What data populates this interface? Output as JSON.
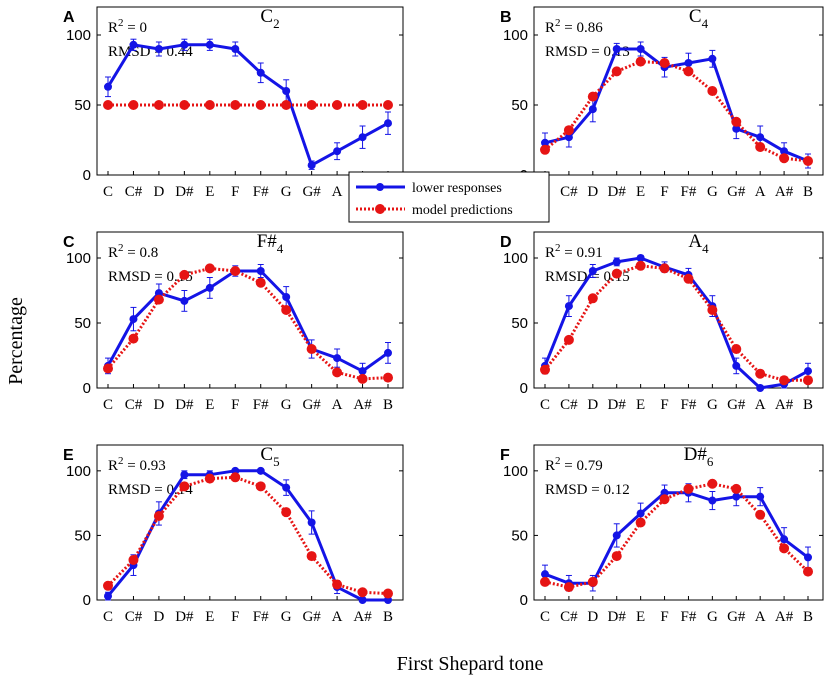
{
  "figure": {
    "ylabel": "Percentage",
    "xlabel": "First Shepard tone",
    "legend": {
      "location": "center",
      "entries": [
        "lower responses",
        "model predictions"
      ]
    },
    "colors": {
      "responses": "#1414e6",
      "model": "#e61414"
    }
  },
  "chart_data": [
    {
      "type": "line",
      "letter": "A",
      "title": "C",
      "title_sub": "2",
      "r2_label": "R",
      "r2_sup": "2",
      "r2_value": " = 0",
      "rmsd": "RMSD = 0.44",
      "ylim": [
        0,
        120
      ],
      "yticks": [
        0,
        50,
        100
      ],
      "categories": [
        "C",
        "C#",
        "D",
        "D#",
        "E",
        "F",
        "F#",
        "G",
        "G#",
        "A",
        "A#",
        "B"
      ],
      "series": [
        {
          "name": "lower responses",
          "values": [
            63,
            93,
            90,
            93,
            93,
            90,
            73,
            60,
            7,
            17,
            27,
            37
          ],
          "errors": [
            7,
            4,
            5,
            4,
            4,
            5,
            7,
            8,
            3,
            6,
            8,
            8
          ]
        },
        {
          "name": "model predictions",
          "values": [
            50,
            50,
            50,
            50,
            50,
            50,
            50,
            50,
            50,
            50,
            50,
            50
          ]
        }
      ]
    },
    {
      "type": "line",
      "letter": "B",
      "title": "C",
      "title_sub": "4",
      "r2_label": "R",
      "r2_sup": "2",
      "r2_value": " = 0.86",
      "rmsd": "RMSD = 0.13",
      "ylim": [
        0,
        120
      ],
      "yticks": [
        0,
        50,
        100
      ],
      "categories": [
        "C",
        "C#",
        "D",
        "D#",
        "E",
        "F",
        "F#",
        "G",
        "G#",
        "A",
        "A#",
        "B"
      ],
      "series": [
        {
          "name": "lower responses",
          "values": [
            23,
            27,
            47,
            90,
            90,
            77,
            80,
            83,
            33,
            27,
            17,
            10
          ],
          "errors": [
            7,
            7,
            9,
            4,
            5,
            7,
            7,
            6,
            7,
            8,
            6,
            5
          ]
        },
        {
          "name": "model predictions",
          "values": [
            18,
            32,
            56,
            74,
            81,
            80,
            74,
            60,
            38,
            20,
            12,
            10
          ]
        }
      ]
    },
    {
      "type": "line",
      "letter": "C",
      "title": "F#",
      "title_sub": "4",
      "r2_label": "R",
      "r2_sup": "2",
      "r2_value": " = 0.8",
      "rmsd": "RMSD = 0.15",
      "ylim": [
        0,
        120
      ],
      "yticks": [
        0,
        50,
        100
      ],
      "categories": [
        "C",
        "C#",
        "D",
        "D#",
        "E",
        "F",
        "F#",
        "G",
        "G#",
        "A",
        "A#",
        "B"
      ],
      "series": [
        {
          "name": "lower responses",
          "values": [
            17,
            53,
            73,
            67,
            77,
            90,
            90,
            70,
            30,
            23,
            13,
            27
          ],
          "errors": [
            6,
            9,
            7,
            8,
            8,
            4,
            5,
            8,
            7,
            7,
            6,
            8
          ]
        },
        {
          "name": "model predictions",
          "values": [
            15,
            38,
            68,
            87,
            92,
            90,
            81,
            60,
            30,
            12,
            7,
            8
          ]
        }
      ]
    },
    {
      "type": "line",
      "letter": "D",
      "title": "A",
      "title_sub": "4",
      "r2_label": "R",
      "r2_sup": "2",
      "r2_value": " = 0.91",
      "rmsd": "RMSD = 0.15",
      "ylim": [
        0,
        120
      ],
      "yticks": [
        0,
        50,
        100
      ],
      "categories": [
        "C",
        "C#",
        "D",
        "D#",
        "E",
        "F",
        "F#",
        "G",
        "G#",
        "A",
        "A#",
        "B"
      ],
      "series": [
        {
          "name": "lower responses",
          "values": [
            17,
            63,
            90,
            97,
            100,
            93,
            87,
            63,
            17,
            0,
            3,
            13
          ],
          "errors": [
            6,
            8,
            5,
            3,
            2,
            4,
            5,
            8,
            6,
            2,
            3,
            6
          ]
        },
        {
          "name": "model predictions",
          "values": [
            14,
            37,
            69,
            88,
            94,
            92,
            84,
            60,
            30,
            11,
            6,
            6
          ]
        }
      ]
    },
    {
      "type": "line",
      "letter": "E",
      "title": "C",
      "title_sub": "5",
      "r2_label": "R",
      "r2_sup": "2",
      "r2_value": " = 0.93",
      "rmsd": "RMSD = 0.14",
      "ylim": [
        0,
        120
      ],
      "yticks": [
        0,
        50,
        100
      ],
      "categories": [
        "C",
        "C#",
        "D",
        "D#",
        "E",
        "F",
        "F#",
        "G",
        "G#",
        "A",
        "A#",
        "B"
      ],
      "series": [
        {
          "name": "lower responses",
          "values": [
            3,
            27,
            67,
            97,
            97,
            100,
            100,
            87,
            60,
            10,
            0,
            0
          ],
          "errors": [
            3,
            8,
            9,
            3,
            3,
            1,
            1,
            6,
            9,
            5,
            2,
            2
          ]
        },
        {
          "name": "model predictions",
          "values": [
            11,
            31,
            65,
            88,
            94,
            95,
            88,
            68,
            34,
            12,
            6,
            5
          ]
        }
      ]
    },
    {
      "type": "line",
      "letter": "F",
      "title": "D#",
      "title_sub": "6",
      "r2_label": "R",
      "r2_sup": "2",
      "r2_value": " = 0.79",
      "rmsd": "RMSD = 0.12",
      "ylim": [
        0,
        120
      ],
      "yticks": [
        0,
        50,
        100
      ],
      "categories": [
        "C",
        "C#",
        "D",
        "D#",
        "E",
        "F",
        "F#",
        "G",
        "G#",
        "A",
        "A#",
        "B"
      ],
      "series": [
        {
          "name": "lower responses",
          "values": [
            20,
            13,
            13,
            50,
            67,
            83,
            83,
            77,
            80,
            80,
            47,
            33
          ],
          "errors": [
            7,
            6,
            6,
            9,
            8,
            6,
            7,
            7,
            7,
            7,
            9,
            8
          ]
        },
        {
          "name": "model predictions",
          "values": [
            14,
            10,
            14,
            34,
            60,
            78,
            86,
            90,
            86,
            66,
            40,
            22
          ]
        }
      ]
    }
  ]
}
